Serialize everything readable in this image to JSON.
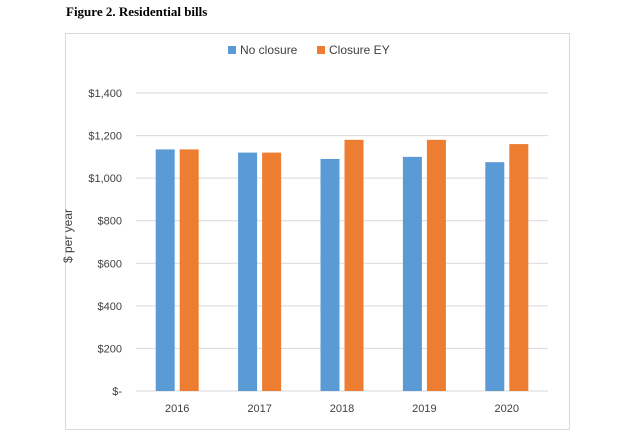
{
  "figure": {
    "title": "Figure 2. Residential bills"
  },
  "chart_data": {
    "type": "bar",
    "categories": [
      "2016",
      "2017",
      "2018",
      "2019",
      "2020"
    ],
    "series": [
      {
        "name": "No closure",
        "color": "#5b9bd5",
        "values": [
          1135,
          1120,
          1090,
          1100,
          1075
        ]
      },
      {
        "name": "Closure EY",
        "color": "#ed7d31",
        "values": [
          1135,
          1120,
          1180,
          1180,
          1160
        ]
      }
    ],
    "ylabel": "$ per year",
    "ylim": [
      0,
      1400
    ],
    "yticks": [
      {
        "value": 0,
        "label": "$-"
      },
      {
        "value": 200,
        "label": "$200"
      },
      {
        "value": 400,
        "label": "$400"
      },
      {
        "value": 600,
        "label": "$600"
      },
      {
        "value": 800,
        "label": "$800"
      },
      {
        "value": 1000,
        "label": "$1,000"
      },
      {
        "value": 1200,
        "label": "$1,200"
      },
      {
        "value": 1400,
        "label": "$1,400"
      }
    ],
    "grid": true,
    "legend_position": "top-center"
  }
}
